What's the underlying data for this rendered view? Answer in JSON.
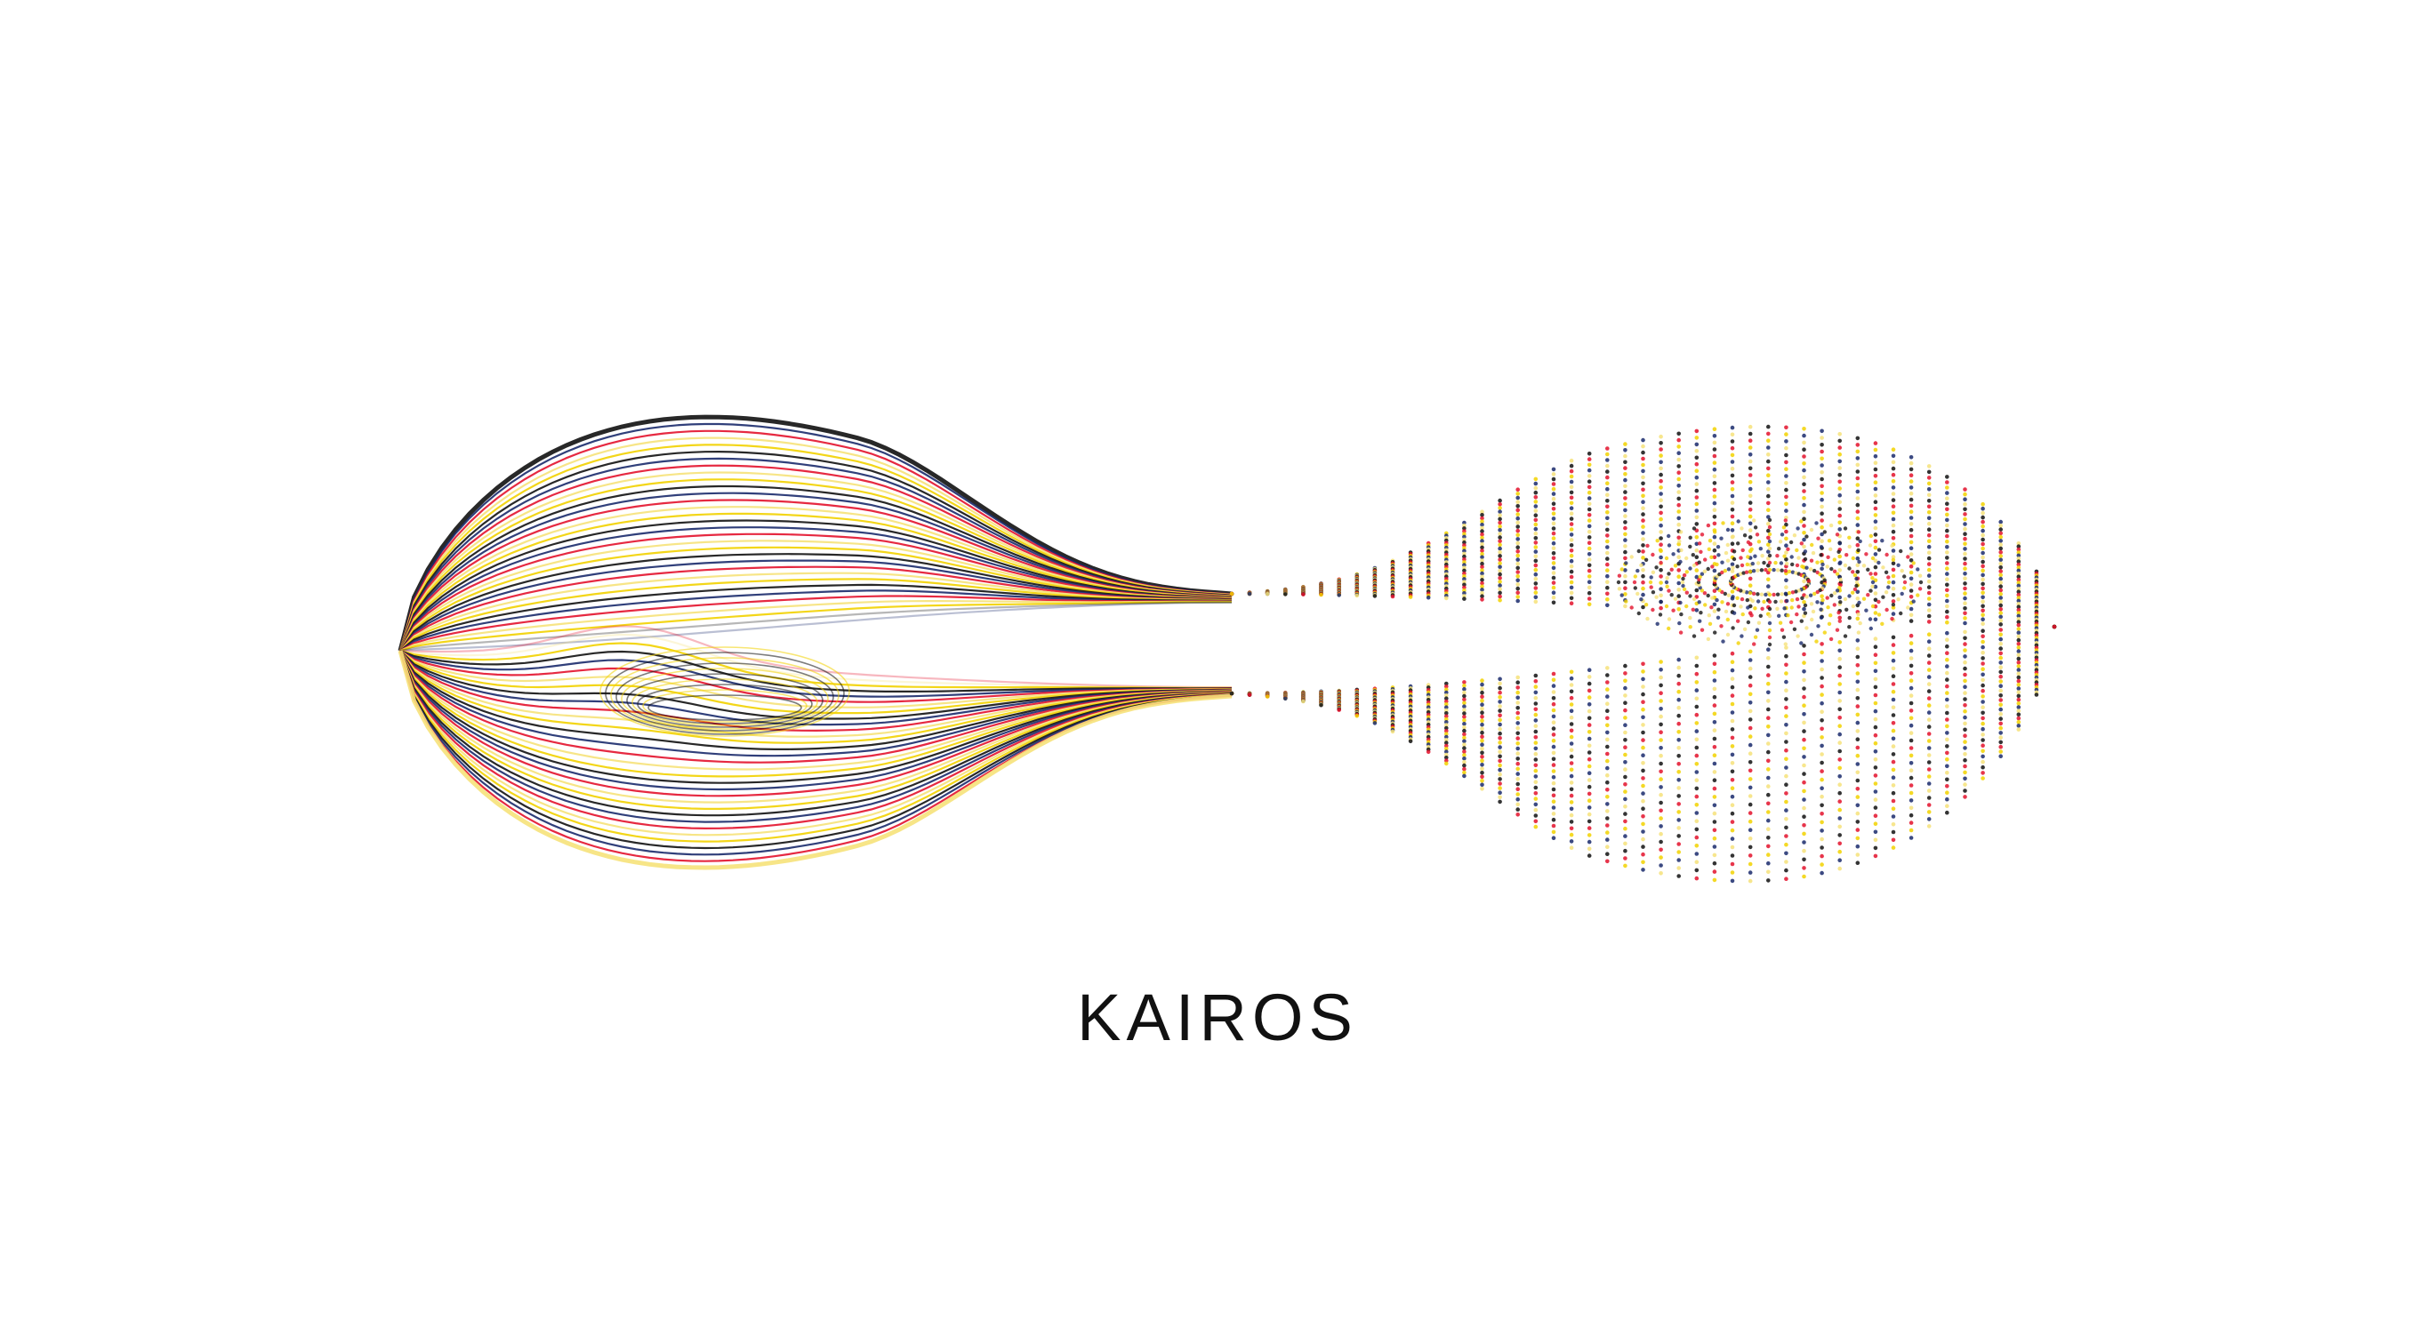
{
  "brand": {
    "wordmark": "KAIROS"
  },
  "artwork": {
    "motif": "flowing-line-and-dot-wave",
    "palette": [
      "#111111",
      "#e3122c",
      "#f2d200",
      "#1a2a6c",
      "#f6e27a"
    ]
  }
}
